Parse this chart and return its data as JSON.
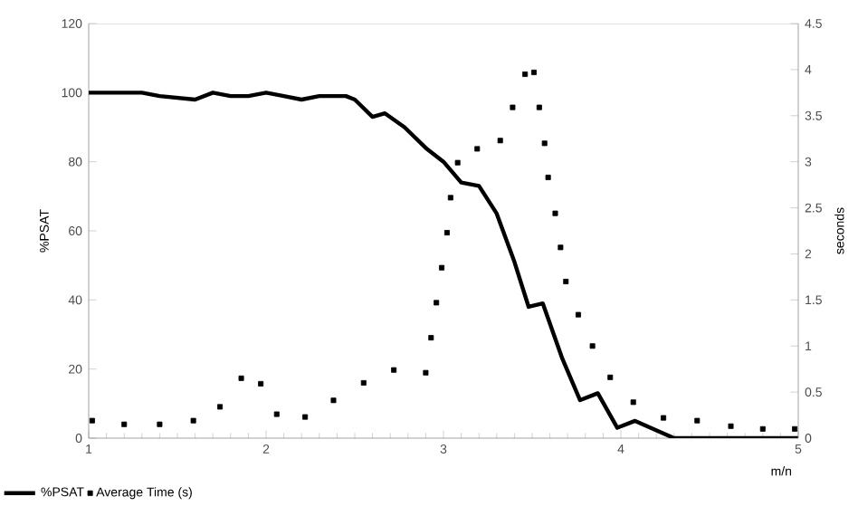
{
  "chart_data": {
    "type": "line",
    "xlabel": "m/n",
    "ylabel": "%PSAT",
    "y2label": "seconds",
    "xlim": [
      1,
      5
    ],
    "xticks": [
      1,
      2,
      3,
      4,
      5
    ],
    "ylim": [
      0,
      120
    ],
    "yticks": [
      0,
      20,
      40,
      60,
      80,
      100,
      120
    ],
    "y2lim": [
      0,
      4.5
    ],
    "y2ticks": [
      0,
      0.5,
      1,
      1.5,
      2,
      2.5,
      3,
      3.5,
      4,
      4.5
    ],
    "grid": false,
    "legend": "bottom left",
    "series": [
      {
        "name": "%PSAT",
        "color": "#000000",
        "marker": "none",
        "line_style": "solid",
        "x": [
          1,
          1.3,
          1.4,
          1.6,
          1.7,
          1.8,
          1.9,
          2.0,
          2.1,
          2.2,
          2.3,
          2.45,
          2.5,
          2.6,
          2.67,
          2.78,
          2.9,
          3.0,
          3.1,
          3.2,
          3.3,
          3.4,
          3.48,
          3.56,
          3.67,
          3.77,
          3.87,
          3.98,
          4.08,
          4.3,
          5
        ],
        "values": [
          100,
          100,
          99,
          98,
          100,
          99,
          99,
          100,
          99,
          98,
          99,
          99,
          98,
          93,
          94,
          90,
          84,
          80,
          74,
          73,
          65,
          51,
          38,
          39,
          23,
          11,
          13,
          3,
          5,
          0,
          0
        ]
      },
      {
        "name": "Average Time (s)",
        "type": "scatter",
        "axis": "y2",
        "color": "#000000",
        "marker": "square",
        "x": [
          1.02,
          1.2,
          1.4,
          1.59,
          1.74,
          1.86,
          1.97,
          2.06,
          2.22,
          2.38,
          2.55,
          2.72,
          2.9,
          2.93,
          2.96,
          2.99,
          3.02,
          3.04,
          3.08,
          3.19,
          3.32,
          3.39,
          3.46,
          3.51,
          3.54,
          3.57,
          3.59,
          3.63,
          3.66,
          3.69,
          3.76,
          3.84,
          3.94,
          4.07,
          4.24,
          4.43,
          4.62,
          4.8,
          4.98
        ],
        "values": [
          0.19,
          0.15,
          0.15,
          0.19,
          0.34,
          0.65,
          0.59,
          0.26,
          0.23,
          0.41,
          0.6,
          0.74,
          0.71,
          1.09,
          1.47,
          1.85,
          2.23,
          2.61,
          2.99,
          3.14,
          3.23,
          3.59,
          3.95,
          3.97,
          3.59,
          3.2,
          2.83,
          2.44,
          2.07,
          1.7,
          1.34,
          1.0,
          0.66,
          0.39,
          0.22,
          0.19,
          0.13,
          0.1,
          0.1
        ]
      }
    ]
  }
}
